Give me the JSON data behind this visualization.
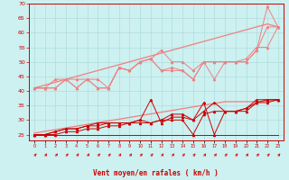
{
  "x": [
    0,
    1,
    2,
    3,
    4,
    5,
    6,
    7,
    8,
    9,
    10,
    11,
    12,
    13,
    14,
    15,
    16,
    17,
    18,
    19,
    20,
    21,
    22,
    23
  ],
  "line1_y": [
    25,
    25,
    25,
    25,
    25,
    25,
    25,
    25,
    25,
    25,
    25,
    25,
    25,
    25,
    25,
    25,
    25,
    25,
    25,
    25,
    25,
    25,
    25,
    25
  ],
  "line2_y": [
    25,
    25,
    25,
    26,
    26,
    27,
    27,
    28,
    28,
    29,
    29,
    29,
    30,
    30,
    30,
    25,
    32,
    33,
    33,
    33,
    33,
    36,
    37,
    37
  ],
  "line3_y": [
    25,
    25,
    26,
    27,
    27,
    28,
    28,
    29,
    29,
    29,
    30,
    29,
    30,
    32,
    32,
    30,
    33,
    36,
    33,
    33,
    34,
    37,
    37,
    37
  ],
  "line4_y": [
    25,
    25,
    26,
    27,
    27,
    28,
    29,
    29,
    29,
    29,
    30,
    37,
    29,
    31,
    31,
    30,
    36,
    25,
    33,
    33,
    34,
    36,
    36,
    37
  ],
  "line5_y": [
    41,
    41,
    41,
    44,
    41,
    44,
    41,
    41,
    48,
    47,
    50,
    51,
    47,
    48,
    47,
    44,
    50,
    50,
    50,
    50,
    50,
    54,
    62,
    62
  ],
  "line6_y": [
    41,
    41,
    41,
    44,
    41,
    44,
    41,
    41,
    48,
    47,
    50,
    51,
    47,
    47,
    47,
    44,
    50,
    44,
    50,
    50,
    50,
    54,
    69,
    62
  ],
  "line7_y": [
    41,
    41,
    44,
    44,
    44,
    44,
    44,
    41,
    48,
    47,
    50,
    51,
    54,
    50,
    50,
    47,
    50,
    50,
    50,
    50,
    51,
    55,
    55,
    62
  ],
  "trend1_y": [
    25.5,
    26.1,
    26.7,
    27.3,
    27.9,
    28.5,
    29.1,
    29.7,
    30.3,
    30.9,
    31.5,
    32.1,
    32.7,
    33.3,
    33.9,
    34.5,
    35.1,
    35.7,
    36.3,
    36.3,
    36.3,
    36.3,
    36.5,
    36.8
  ],
  "trend2_y": [
    41,
    42,
    43,
    44,
    45,
    46,
    47,
    48,
    49,
    50,
    51,
    52,
    53,
    54,
    55,
    56,
    57,
    58,
    59,
    60,
    61,
    62,
    63,
    62
  ],
  "xlabel": "Vent moyen/en rafales ( km/h )",
  "ylim_min": 23,
  "ylim_max": 70,
  "ytick_vals": [
    25,
    30,
    35,
    40,
    45,
    50,
    55,
    60,
    65,
    70
  ],
  "bg_color": "#cdf0f0",
  "grid_color": "#b0dede",
  "dark_red": "#cc0000",
  "light_red": "#f08080"
}
